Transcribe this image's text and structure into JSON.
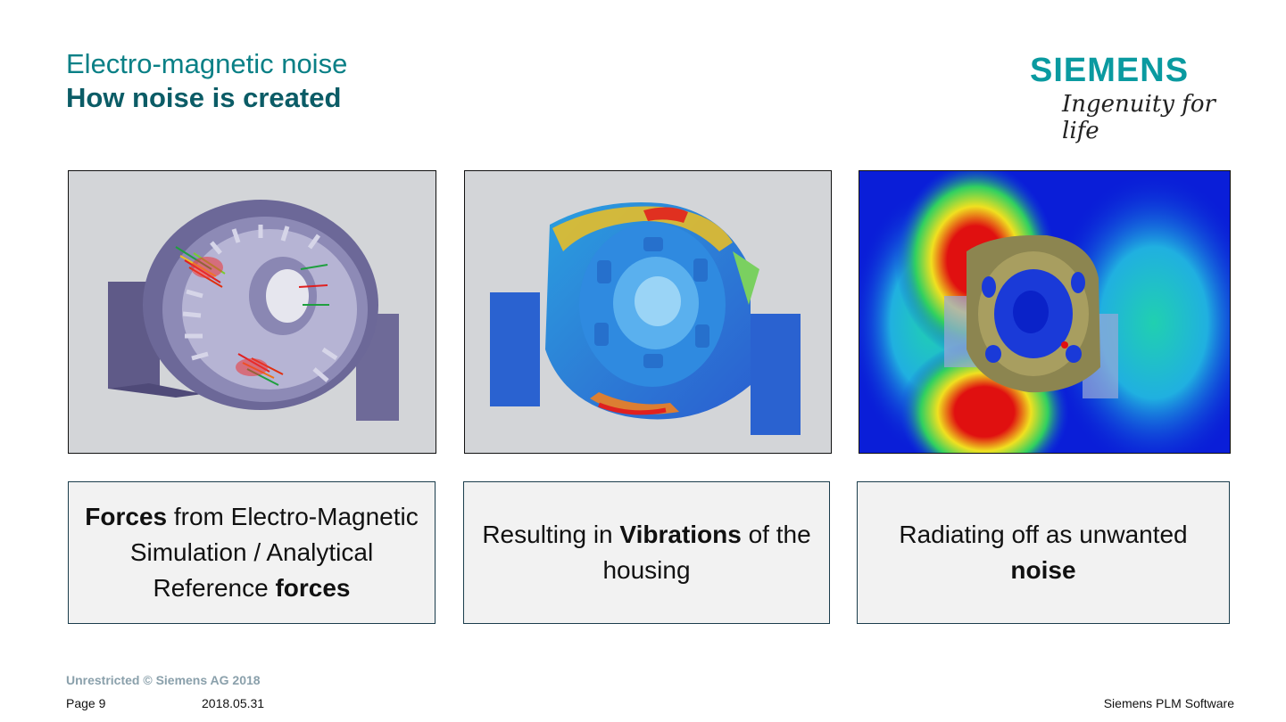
{
  "slide": {
    "title": "Electro-magnetic noise",
    "subtitle": "How noise is created"
  },
  "logo": {
    "wordmark": "SIEMENS",
    "tagline": "Ingenuity for life"
  },
  "panels": [
    {
      "image": "housing-force-arrows",
      "caption": {
        "b1": "Forces",
        "t1": " from Electro-Magnetic Simulation / Analytical Reference ",
        "b2": "forces"
      }
    },
    {
      "image": "housing-vibration-contour",
      "caption": {
        "t1": "Resulting in ",
        "b1": "Vibrations",
        "t2": " of the housing"
      }
    },
    {
      "image": "acoustic-radiation-field",
      "caption": {
        "t1": "Radiating off as unwanted ",
        "b1": "noise"
      }
    }
  ],
  "footer": {
    "copyright": "Unrestricted © Siemens AG 2018",
    "page": "Page 9",
    "date": "2018.05.31",
    "org": "Siemens PLM Software"
  },
  "colors": {
    "title": "#0a8086",
    "subtitle": "#0b5c66",
    "logo": "#0a9aa0",
    "caption_bg": "#f2f2f2",
    "caption_border": "#1b3d4c"
  }
}
